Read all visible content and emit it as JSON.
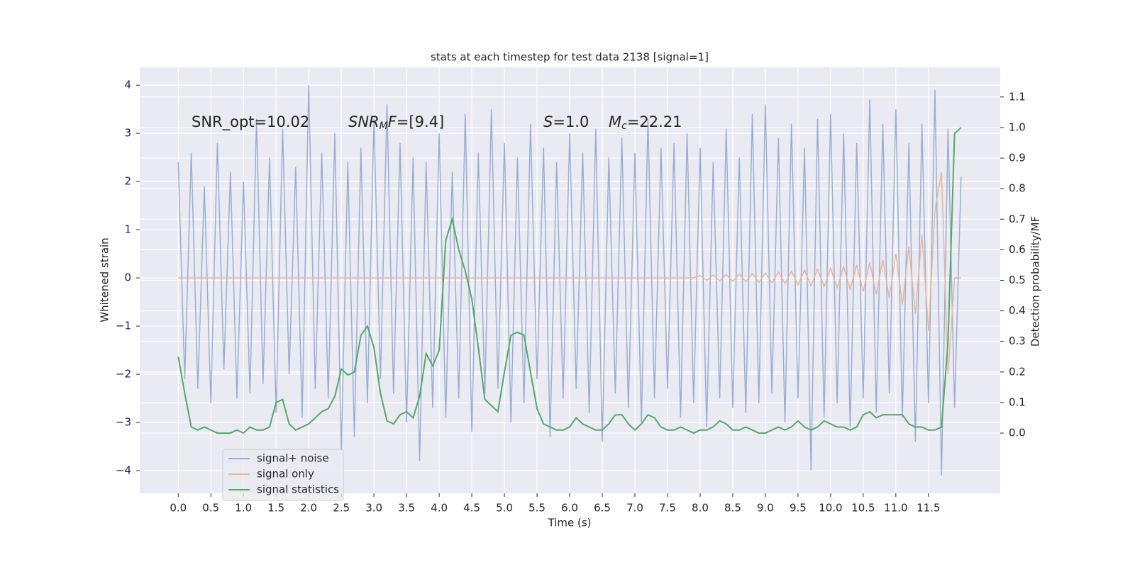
{
  "chart_data": {
    "type": "line",
    "title": "stats at each timestep for test data 2138 [signal=1]",
    "xlabel": "Time (s)",
    "ylabel": "Whitened strain",
    "y2label": "Detection probability/MF",
    "annotations": [
      [
        "SNR_opt=10.02"
      ],
      [
        "SNR",
        "M",
        "F",
        "=[9.4]"
      ],
      [
        "S",
        "=1.0"
      ],
      [
        "M",
        "c",
        "=22.21"
      ]
    ],
    "grid": true,
    "legend": "lower left",
    "xlim": [
      -0.59,
      12.6
    ],
    "ylim": [
      -4.47,
      4.37
    ],
    "y2lim": [
      -0.197,
      1.197
    ],
    "xticks": [
      {
        "value": 0,
        "label": "0.0"
      },
      0.5,
      {
        "value": 1,
        "label": "1.0"
      },
      1.5,
      {
        "value": 2,
        "label": "2.0"
      },
      2.5,
      {
        "value": 3,
        "label": "3.0"
      },
      3.5,
      {
        "value": 4,
        "label": "4.0"
      },
      4.5,
      {
        "value": 5,
        "label": "5.0"
      },
      5.5,
      {
        "value": 6,
        "label": "6.0"
      },
      6.5,
      {
        "value": 7,
        "label": "7.0"
      },
      7.5,
      {
        "value": 8,
        "label": "8.0"
      },
      8.5,
      {
        "value": 9,
        "label": "9.0"
      },
      9.5,
      {
        "value": 10,
        "label": "10.0"
      },
      10.5,
      {
        "value": 11,
        "label": "11.0"
      },
      11.5
    ],
    "yticks": [
      {
        "value": -4,
        "label": "−4"
      },
      {
        "value": -3,
        "label": "−3"
      },
      {
        "value": -2,
        "label": "−2"
      },
      {
        "value": -1,
        "label": "−1"
      },
      0,
      1,
      2,
      3,
      4
    ],
    "y2ticks": [
      {
        "value": 0,
        "label": "0.0"
      },
      0.1,
      0.2,
      0.3,
      0.4,
      0.5,
      0.6,
      0.7,
      0.8,
      0.9,
      {
        "value": 1,
        "label": "1.0"
      },
      1.1
    ],
    "x": [
      0,
      0.1,
      0.2,
      0.3,
      0.4,
      0.5,
      0.6,
      0.7,
      0.8,
      0.9,
      1,
      1.1,
      1.2,
      1.3,
      1.4,
      1.5,
      1.6,
      1.7,
      1.8,
      1.9,
      2,
      2.1,
      2.2,
      2.3,
      2.4,
      2.5,
      2.6,
      2.7,
      2.8,
      2.9,
      3,
      3.1,
      3.2,
      3.3,
      3.4,
      3.5,
      3.6,
      3.7,
      3.8,
      3.9,
      4,
      4.1,
      4.2,
      4.3,
      4.4,
      4.5,
      4.6,
      4.7,
      4.8,
      4.9,
      5,
      5.1,
      5.2,
      5.3,
      5.4,
      5.5,
      5.6,
      5.7,
      5.8,
      5.9,
      6,
      6.1,
      6.2,
      6.3,
      6.4,
      6.5,
      6.6,
      6.7,
      6.8,
      6.9,
      7,
      7.1,
      7.2,
      7.3,
      7.4,
      7.5,
      7.6,
      7.7,
      7.8,
      7.9,
      8,
      8.1,
      8.2,
      8.3,
      8.4,
      8.5,
      8.6,
      8.7,
      8.8,
      8.9,
      9,
      9.1,
      9.2,
      9.3,
      9.4,
      9.5,
      9.6,
      9.7,
      9.8,
      9.9,
      10,
      10.1,
      10.2,
      10.3,
      10.4,
      10.5,
      10.6,
      10.7,
      10.8,
      10.9,
      11,
      11.1,
      11.2,
      11.3,
      11.4,
      11.5,
      11.6,
      11.7,
      11.8,
      11.9,
      12
    ],
    "series": [
      {
        "name": "signal+ noise",
        "color": "#9aaed4",
        "values": [
          2.4,
          -2.1,
          2.6,
          -2.3,
          1.9,
          -2.6,
          2.8,
          -1.9,
          2.2,
          -2.5,
          2.0,
          -2.4,
          3.3,
          -2.2,
          2.5,
          -2.8,
          3.1,
          -2.0,
          2.3,
          -2.9,
          4.0,
          -2.3,
          2.6,
          -2.5,
          3.0,
          -3.6,
          2.4,
          -3.3,
          2.7,
          -2.6,
          3.3,
          -2.1,
          3.6,
          -2.4,
          2.8,
          -3.0,
          2.5,
          -3.8,
          2.4,
          -2.7,
          3.0,
          -2.9,
          2.2,
          -2.5,
          3.4,
          -3.2,
          2.6,
          -2.4,
          3.5,
          -2.3,
          2.8,
          -3.0,
          2.5,
          -2.6,
          3.2,
          -2.1,
          2.7,
          -3.3,
          2.4,
          -2.5,
          3.0,
          -2.3,
          2.6,
          -2.8,
          3.1,
          -3.4,
          2.5,
          -2.4,
          2.9,
          -2.7,
          2.6,
          -3.0,
          3.3,
          -2.5,
          2.7,
          -2.3,
          2.8,
          -2.9,
          3.0,
          -2.6,
          2.7,
          -3.1,
          2.4,
          -2.5,
          3.1,
          -2.7,
          2.5,
          -2.8,
          3.4,
          -2.6,
          3.6,
          -2.4,
          2.9,
          -3.0,
          3.2,
          -2.5,
          2.7,
          -4.0,
          3.3,
          -2.9,
          3.4,
          -2.6,
          3.0,
          -3.1,
          2.8,
          -2.5,
          3.7,
          -2.8,
          3.2,
          -2.4,
          3.5,
          -2.9,
          2.8,
          -3.4,
          3.2,
          -2.6,
          3.9,
          -4.1,
          3.1,
          -2.7,
          2.1
        ]
      },
      {
        "name": "signal only",
        "color": "#e8b69a",
        "values": [
          0,
          0,
          0,
          0,
          0,
          0,
          0,
          0,
          0,
          0,
          0,
          0,
          0,
          0,
          0,
          0,
          0,
          0,
          0,
          0,
          0,
          0,
          0,
          0,
          0,
          0,
          0,
          0,
          0,
          0,
          0,
          0,
          0,
          0,
          0,
          0,
          0,
          0,
          0,
          0,
          0,
          0,
          0,
          0,
          0,
          0,
          0,
          0,
          0,
          0,
          0,
          0,
          0,
          0,
          0,
          0,
          0,
          0,
          0,
          0,
          0,
          0,
          0,
          0,
          0,
          0,
          0,
          0,
          0,
          0,
          0,
          0,
          0,
          0,
          0,
          0,
          0,
          0,
          0,
          0,
          0.05,
          -0.05,
          0.06,
          -0.06,
          0.07,
          -0.07,
          0.08,
          -0.08,
          0.09,
          -0.09,
          0.1,
          -0.1,
          0.12,
          -0.12,
          0.14,
          -0.14,
          0.16,
          -0.16,
          0.18,
          -0.18,
          0.2,
          -0.2,
          0.23,
          -0.24,
          0.27,
          -0.28,
          0.32,
          -0.34,
          0.38,
          -0.42,
          0.5,
          -0.55,
          0.65,
          -0.75,
          0.9,
          -1.1,
          1.4,
          2.2,
          -2.0,
          0,
          0
        ]
      },
      {
        "name": "signal statistics",
        "color": "#55a868",
        "axis": "y2",
        "values": [
          0.25,
          0.13,
          0.02,
          0.01,
          0.02,
          0.01,
          0,
          0,
          0,
          0.01,
          0,
          0.02,
          0.01,
          0.01,
          0.02,
          0.1,
          0.11,
          0.03,
          0.01,
          0.02,
          0.03,
          0.05,
          0.07,
          0.08,
          0.12,
          0.21,
          0.19,
          0.2,
          0.32,
          0.35,
          0.28,
          0.13,
          0.04,
          0.03,
          0.06,
          0.07,
          0.05,
          0.12,
          0.26,
          0.22,
          0.27,
          0.63,
          0.7,
          0.6,
          0.53,
          0.44,
          0.28,
          0.11,
          0.09,
          0.07,
          0.2,
          0.32,
          0.33,
          0.32,
          0.2,
          0.08,
          0.03,
          0.02,
          0.01,
          0.01,
          0.02,
          0.05,
          0.03,
          0.02,
          0.01,
          0.01,
          0.03,
          0.06,
          0.06,
          0.03,
          0.01,
          0.03,
          0.06,
          0.05,
          0.02,
          0.01,
          0.01,
          0.02,
          0.01,
          0,
          0.01,
          0.01,
          0.02,
          0.04,
          0.03,
          0.01,
          0.01,
          0.02,
          0.01,
          0,
          0,
          0.01,
          0.02,
          0.01,
          0.02,
          0.04,
          0.02,
          0.01,
          0.02,
          0.04,
          0.03,
          0.02,
          0.02,
          0.01,
          0.02,
          0.06,
          0.07,
          0.05,
          0.06,
          0.06,
          0.06,
          0.06,
          0.03,
          0.02,
          0.02,
          0.01,
          0.01,
          0.02,
          0.3,
          0.98,
          1.0
        ]
      }
    ]
  }
}
